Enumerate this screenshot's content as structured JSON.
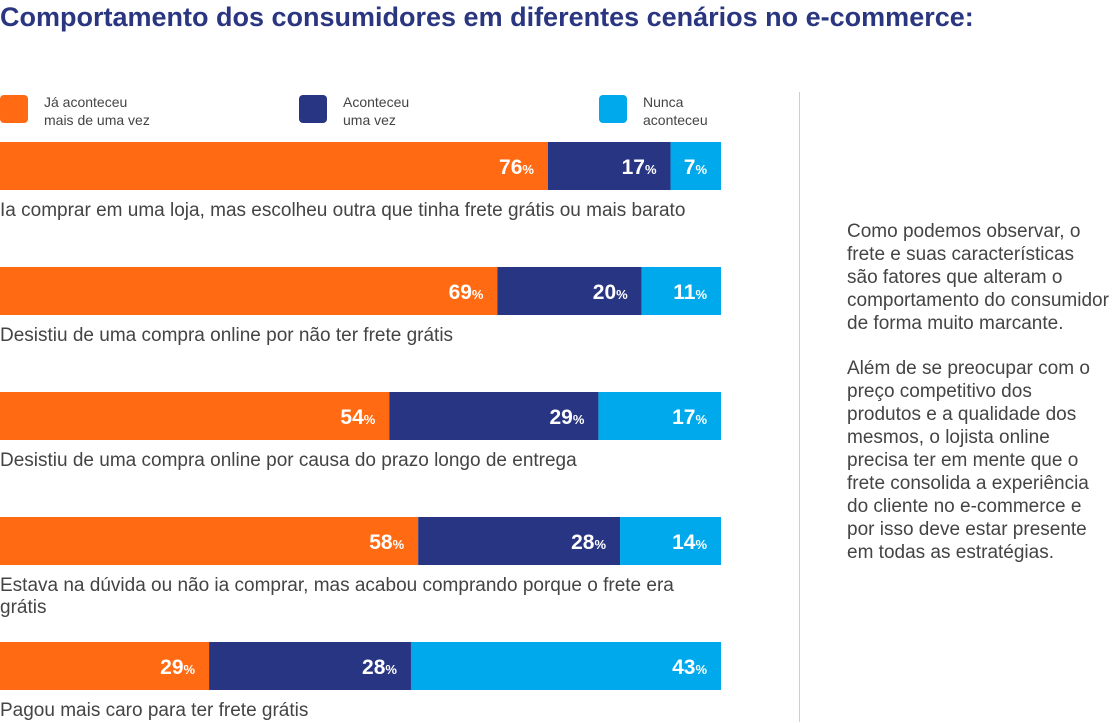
{
  "title": "Comportamento dos consumidores em diferentes cenários no e-commerce:",
  "legend": [
    {
      "line1": "Já aconteceu",
      "line2": "mais de uma vez",
      "color": "#ff6a13",
      "icon": "orange-square"
    },
    {
      "line1": "Aconteceu",
      "line2": "uma vez",
      "color": "#283583",
      "icon": "navy-square"
    },
    {
      "line1": "Nunca",
      "line2": "aconteceu",
      "color": "#00a8ec",
      "icon": "blue-square"
    }
  ],
  "sidebar": {
    "paragraph1": "Como podemos observar, o frete e suas características são fatores que alteram o comportamento do consumidor de forma muito marcante.",
    "paragraph2": "Além de se preocupar com o preço competitivo dos produtos e a qualidade dos mesmos, o lojista online precisa ter em mente que o frete consolida a experiência do cliente no e-commerce e por isso deve estar presente em todas as estratégias."
  },
  "chart_data": {
    "type": "bar",
    "orientation": "horizontal",
    "stacked": true,
    "unit": "%",
    "categories": [
      "Ia comprar em uma loja, mas escolheu outra que tinha frete grátis ou mais barato",
      "Desistiu de uma compra online por não ter frete grátis",
      "Desistiu de uma compra online por causa do prazo longo de entrega",
      "Estava na dúvida ou não ia comprar, mas acabou comprando porque o frete era grátis",
      "Pagou mais caro para ter frete grátis"
    ],
    "series": [
      {
        "name": "Já aconteceu mais de uma vez",
        "color": "#ff6a13",
        "values": [
          76,
          69,
          54,
          58,
          29
        ]
      },
      {
        "name": "Aconteceu uma vez",
        "color": "#283583",
        "values": [
          17,
          20,
          29,
          28,
          28
        ]
      },
      {
        "name": "Nunca aconteceu",
        "color": "#00a8ec",
        "values": [
          7,
          11,
          17,
          14,
          43
        ]
      }
    ],
    "xlim": [
      0,
      100
    ]
  }
}
